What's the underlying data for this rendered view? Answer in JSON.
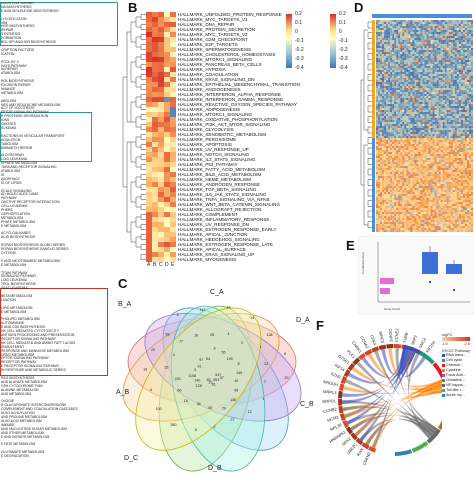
{
  "panel_letters": {
    "b": "B",
    "c": "C",
    "d": "D",
    "e": "E",
    "f": "F"
  },
  "panel_a": {
    "lines": [
      "GOUS END JOINING",
      "NA BIOSYNTHESIS",
      "E AND ISOLEUCINE BIOSYNTHESIS",
      "",
      "LYCOSYLATION",
      "ISM",
      "HOR BIOSYNTHESIS",
      "REPAIR",
      "SYNTHESIS",
      "FORMATION",
      "BOL GPI ANCHOR BIOSYNTHESIS",
      "",
      "CRIPTION FACTORS",
      "ICATION",
      "",
      "POOL BY 3",
      "HAYS PATHWAY",
      "IN REPAIR",
      "ATABOLISM",
      "",
      "ROL BIOSYNTHESIS",
      "EXCISION REPAIR",
      "NHANCE",
      "METABOLISM",
      "",
      "ABOLISM",
      "NES AND ISOLEUCINE METABOLISM",
      "ACY OF ISOCITRATE",
      "EPTOR SIGNALING PATHWAY",
      "E PROTEASE DEGRADATION",
      "IONS",
      "OMOSES",
      "EUKEMIA",
      "",
      "RACTIONS IN VESICULAR TRANSPORT",
      "AGULATION",
      "TABOLISM",
      "MISMATCH REPAIR",
      "",
      "ALD PATHWAY",
      "LOID LEUKEMIA",
      "SPHATE METABOLISM",
      "TARA AND RECEPTOR SIGNALING",
      "ATABOLISM",
      "IS",
      "ASOPHAGY",
      "IS OF LIPIDS",
      "",
      "ECULE SIGNALING",
      "AD MOLECULES CAMS",
      "PATHWAY",
      "OACTIVE RECEPTOR INTERACTION",
      "CELL LEUKEMIA",
      "PHERS",
      "OSPHORYLATION",
      "METABOLISM",
      "PHATE METABOLISM",
      "E METABOLISM",
      "",
      "ACYCLOALKANES",
      "ACID BIOSYNTHESIS",
      "",
      "ROPAN BIOSYNTHESIS GLOBO SERIES",
      "ROPAN BIOSYNTHESIS GANGLIO SERIES",
      "CYTOSIS",
      "",
      "E AND NICOTINAMIDE METABOLISM",
      "E METABOLISM",
      "",
      "TITAM PATHWAY",
      "SIGNALING PATHWAY",
      "LOID LEUKEMIA",
      "TROL BIOSYNTHESIS",
      "IIGAT LEUKEMIA",
      "",
      "BETA METABOLISM",
      "LIZATION",
      "",
      "LIPID METABOLISM",
      "E METABOLISM",
      "",
      "PHOLIPID METABOLISM",
      "AUTOIMMUNE",
      "E AND CDK BIOSYNTHESIS",
      "NK CELL MEDIATED CYTOTOXICITY",
      "ANTIGEN PROCESSING AND PRESENTATION",
      "RECEPTOR SIGNALING PATHWAY",
      "NK CELL MEDIATED AND AMINO FATTY ACIDS",
      "ENGULFMENT",
      "RESPONSE AND MANNOSE METABOLISM",
      "DRUG METABOLISM",
      "EPTOR SIGNALING PATHWAY",
      "RECEPTOR PATHWAY",
      "E RECEPTOR SIGNALING PATHWAY",
      "IN RESPONSE AND METABOLIC SERIES",
      "",
      "REG BIOSYNTHESIS",
      "AND ALANATE METABOLISM",
      "GSH CYTOCHROME P450",
      "ALANINE METABOLISM",
      "AND METABOLISM",
      "",
      "OLOGIE",
      "R GLUCURONATE INTERCONVERSIONS",
      "COMPLEMENT AND COAGULATION CASCADES",
      "ALSO ACHUYLATION",
      "AND PROLINE METABOLISM",
      "ALSO ACID METABOLISM",
      "IMMUNE",
      "AND NUCLEOTIDE SUGAR METABOLISM",
      "AND ETHER METABOLISM",
      "E AND NITRATE METABOLISM",
      "",
      "E FATE METABOLISM",
      "",
      "GLUTAMATE METABOLISM",
      "E DEGRADATION"
    ]
  },
  "panel_b": {
    "columns": [
      "A",
      "B",
      "C",
      "D",
      "E"
    ],
    "colorbar_ticks": [
      "0.2",
      "0.1",
      "0",
      "-0.1",
      "-0.2",
      "-0.3",
      "-0.4"
    ],
    "rows": [
      "HALLMARK_UNFOLDED_PROTEIN_RESPONSE",
      "HALLMARK_MYC_TARGETS_V1",
      "HALLMARK_DNA_REPAIR",
      "HALLMARK_PROTEIN_SECRETION",
      "HALLMARK_MYC_TARGETS_V2",
      "HALLMARK_G2M_CHECKPOINT",
      "HALLMARK_E2F_TARGETS",
      "HALLMARK_SPERMATOGENESIS",
      "HALLMARK_CHOLESTEROL_HOMEOSTASIS",
      "HALLMARK_MTORC1_SIGNALING",
      "HALLMARK_PANCREAS_BETA_CELLS",
      "HALLMARK_HYPOXIA",
      "HALLMARK_COAGULATION",
      "HALLMARK_KRAS_SIGNALING_DN",
      "HALLMARK_EPITHELIAL_MESENCHYMAL_TRANSITION",
      "HALLMARK_ANGIOGENESIS",
      "HALLMARK_INTERFERON_ALPHA_RESPONSE",
      "HALLMARK_INTERFERON_GAMMA_RESPONSE",
      "HALLMARK_REACTIVE_OXYGEN_SPECIES_PATHWAY",
      "HALLMARK_ADIPOGENESIS",
      "HALLMARK_MTORC1_SIGNALING",
      "HALLMARK_OXIDATIVE_PHOSPHORYLATION",
      "HALLMARK_PI3K_AKT_MTOR_SIGNALING",
      "HALLMARK_GLYCOLYSIS",
      "HALLMARK_XENOBIOTIC_METABOLISM",
      "HALLMARK_PEROXISOME",
      "HALLMARK_APOPTOSIS",
      "HALLMARK_UV_RESPONSE_UP",
      "HALLMARK_NOTCH_SIGNALING",
      "HALLMARK_IL2_STAT5_SIGNALING",
      "HALLMARK_P53_PATHWAY",
      "HALLMARK_FATTY_ACID_METABOLISM",
      "HALLMARK_BILE_ACID_METABOLISM",
      "HALLMARK_HEME_METABOLISM",
      "HALLMARK_ANDROGEN_RESPONSE",
      "HALLMARK_TGF_BETA_SIGNALING",
      "HALLMARK_IL6_JAK_STAT3_SIGNALING",
      "HALLMARK_TNFA_SIGNALING_VIA_NFKB",
      "HALLMARK_WNT_BETA_CATENIN_SIGNALING",
      "HALLMARK_ALLOGRAFT_REJECTION",
      "HALLMARK_COMPLEMENT",
      "HALLMARK_INFLAMMATORY_RESPONSE",
      "HALLMARK_UV_RESPONSE_DN",
      "HALLMARK_ESTROGEN_RESPONSE_EARLY",
      "HALLMARK_APICAL_JUNCTION",
      "HALLMARK_HEDGEHOG_SIGNALING",
      "HALLMARK_ESTROGEN_RESPONSE_LATE",
      "HALLMARK_APICAL_SURFACE",
      "HALLMARK_KRAS_SIGNALING_UP",
      "HALLMARK_MYOGENESIS"
    ]
  },
  "panel_d": {
    "colorbar_ticks": [
      "0.2",
      "0.1",
      "0",
      "-0.1",
      "-0.2",
      "-0.3",
      "-0.4"
    ]
  },
  "panel_c": {
    "set_labels": [
      "C_A",
      "B_A",
      "D_A",
      "A_B",
      "D_C",
      "C_B",
      "D_B"
    ],
    "region_values": [
      "547",
      "128",
      "4",
      "145",
      "52",
      "1",
      "8",
      "5",
      "37",
      "140",
      "55",
      "29",
      "4",
      "22",
      "380",
      "117",
      "3",
      "1108",
      "190",
      "60",
      "77",
      "2",
      "100",
      "44",
      "56",
      "3",
      "8",
      "34",
      "16",
      "1",
      "6",
      "14",
      "81",
      "91",
      "145",
      "16",
      "25",
      "12",
      "19",
      "138",
      "20",
      "97",
      "40",
      "60",
      "4",
      "27",
      "20",
      "8",
      "82",
      "64",
      "45",
      "220",
      "3",
      "2",
      "58",
      "29"
    ]
  },
  "panel_e": {
    "y_axis_title": "Correlation Sum",
    "x_axis_title": "Gene Count"
  },
  "panel_f": {
    "genes": [
      "CDKN3",
      "RAN",
      "UBE2C",
      "NEK2",
      "HNRNPA1",
      "RPL36",
      "MCM3",
      "CCNB2",
      "SNRPD1",
      "MRPL3",
      "MAGOH",
      "EZH2",
      "KIF14",
      "GTSE1",
      "PLK1",
      "CHEK1",
      "CCNA2",
      "CDK4",
      "BIRC5",
      "CENPF",
      "CCNE2",
      "TUBB",
      "SKP2",
      "SMC4",
      "KIF20A"
    ],
    "legend_title": "KEGG Pathway",
    "legend_items": [
      "RNA trans...",
      "Cell cycle",
      "Chemok...",
      "Cytokine",
      "Focal Adh...",
      "Oxidative...",
      "NF-kappa...",
      "Toll-like r...",
      "Acute my..."
    ],
    "legend_colors": [
      "#3b4cc0",
      "#1b9e77",
      "#e41a1c",
      "#ff7f00",
      "#984ea3",
      "#a6761d",
      "#666666",
      "#4daf4a",
      "#377eb8"
    ],
    "logfc_label": "logFC",
    "logfc_ticks": [
      "1.5",
      "2.5"
    ]
  },
  "colors": {
    "hm_high": "#d73027",
    "hm_mid": "#ffffbf",
    "hm_low": "#4575b4",
    "d_top_bar": "#4a90d9",
    "d_side_bar": "#f5a623"
  }
}
